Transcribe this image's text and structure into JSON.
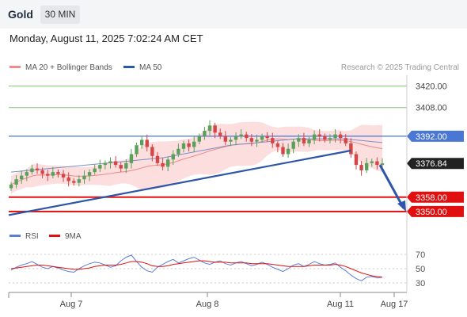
{
  "header": {
    "asset": "Gold",
    "timeframe": "30 MIN",
    "datetime": "Monday, August 11, 2025 7:02:24 AM CET"
  },
  "legend": {
    "bb_label": "MA 20 + Bollinger Bands",
    "ma50_label": "MA 50",
    "credit": "Research © 2025 Trading Central",
    "rsi_label": "RSI",
    "ma9_label": "9MA"
  },
  "colors": {
    "bull": "#5aa05a",
    "bear": "#d64545",
    "bb_band": "#fbd3d3",
    "bb_line": "#e88",
    "ma50": "#7a8fc7",
    "trendline": "#2d55a8",
    "resistance_blue": "#4a77d4",
    "support_red": "#e01010",
    "green_level": "#7dc46a",
    "rsi": "#5b7fd6",
    "rsi_ma": "#e01010"
  },
  "chart_data": {
    "type": "candlestick",
    "price_axis": {
      "ylim": [
        3342,
        3426
      ]
    },
    "x_ticks": [
      "Aug 7",
      "Aug 8",
      "Aug 11",
      "Aug 17"
    ],
    "levels": [
      {
        "label": "3420.00",
        "value": 3420,
        "kind": "target"
      },
      {
        "label": "3408.00",
        "value": 3408,
        "kind": "target"
      },
      {
        "label": "3392.00",
        "value": 3392,
        "kind": "pivot"
      },
      {
        "label": "3376.84",
        "value": 3376.84,
        "kind": "last"
      },
      {
        "label": "3358.00",
        "value": 3358,
        "kind": "support"
      },
      {
        "label": "3350.00",
        "value": 3350,
        "kind": "support"
      }
    ],
    "closes": [
      3365,
      3368,
      3370,
      3372,
      3374,
      3373,
      3371,
      3370,
      3372,
      3371,
      3369,
      3367,
      3366,
      3368,
      3370,
      3372,
      3374,
      3376,
      3377,
      3378,
      3376,
      3374,
      3377,
      3382,
      3387,
      3390,
      3386,
      3381,
      3377,
      3375,
      3379,
      3382,
      3385,
      3388,
      3386,
      3389,
      3392,
      3395,
      3398,
      3394,
      3392,
      3389,
      3390,
      3392,
      3393,
      3391,
      3389,
      3390,
      3392,
      3391,
      3388,
      3386,
      3382,
      3385,
      3389,
      3391,
      3388,
      3390,
      3393,
      3392,
      3390,
      3391,
      3393,
      3391,
      3388,
      3382,
      3376,
      3373,
      3377,
      3378,
      3376,
      3376.84
    ],
    "ma50": [
      3372,
      3372.5,
      3373,
      3373.5,
      3374,
      3374.5,
      3375,
      3375.5,
      3376,
      3376.5,
      3377,
      3377.5,
      3378,
      3378.5,
      3379,
      3379.5,
      3380,
      3381,
      3382,
      3383,
      3384,
      3385,
      3386,
      3387,
      3387.5,
      3388,
      3388.5,
      3389,
      3389.5,
      3390,
      3390.5,
      3390.5,
      3390.5,
      3390.5,
      3390.5,
      3390.5,
      3390,
      3389.5,
      3389,
      3388.5
    ],
    "trendline": {
      "from": [
        0,
        3348
      ],
      "to": [
        65,
        3384
      ]
    },
    "projection": {
      "from": 3376,
      "to": 3350
    },
    "rsi": {
      "ticks": [
        "70",
        "50",
        "30"
      ],
      "ylim": [
        20,
        80
      ],
      "rsi_values": [
        48,
        52,
        55,
        57,
        60,
        56,
        52,
        50,
        53,
        51,
        48,
        46,
        45,
        50,
        54,
        57,
        59,
        58,
        55,
        52,
        54,
        61,
        66,
        69,
        60,
        52,
        47,
        45,
        52,
        56,
        60,
        63,
        58,
        61,
        64,
        66,
        62,
        58,
        56,
        59,
        61,
        57,
        55,
        58,
        60,
        57,
        54,
        56,
        59,
        56,
        52,
        49,
        46,
        50,
        55,
        57,
        53,
        56,
        60,
        57,
        55,
        56,
        58,
        52,
        47,
        41,
        36,
        33,
        38,
        39,
        37,
        38
      ],
      "ma_values": [
        50,
        51,
        52,
        53,
        54,
        55,
        55,
        54,
        53,
        52,
        51,
        50,
        49,
        49,
        50,
        51,
        53,
        54,
        55,
        55,
        55,
        56,
        58,
        60,
        60,
        59,
        57,
        54,
        53,
        53,
        54,
        56,
        57,
        58,
        59,
        60,
        61,
        61,
        60,
        59,
        59,
        59,
        58,
        58,
        58,
        58,
        57,
        57,
        57,
        57,
        56,
        55,
        54,
        53,
        53,
        53,
        53,
        54,
        55,
        55,
        55,
        55,
        56,
        55,
        53,
        50,
        47,
        44,
        42,
        40,
        39,
        38
      ]
    }
  }
}
